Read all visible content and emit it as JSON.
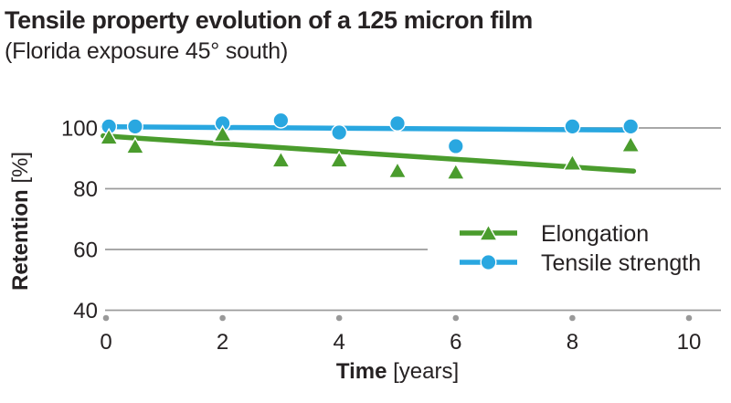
{
  "chart_data": {
    "type": "scatter",
    "title": "Tensile property evolution of a 125 micron film",
    "subtitle": "(Florida exposure 45° south)",
    "xlabel": {
      "bold": "Time",
      "unit": " [years]"
    },
    "ylabel": {
      "bold": "Retention",
      "unit": " [%]"
    },
    "x_ticks": [
      0,
      2,
      4,
      6,
      8,
      10
    ],
    "y_ticks": [
      100,
      80,
      60,
      40
    ],
    "xlim": [
      0,
      10
    ],
    "ylim": [
      40,
      105
    ],
    "grid": "horizontal-only",
    "legend_position": "right-middle",
    "series": [
      {
        "name": "Elongation",
        "marker": "triangle",
        "color": "#4a9c2d",
        "points": [
          [
            0.05,
            97
          ],
          [
            0.5,
            94
          ],
          [
            2,
            98
          ],
          [
            3,
            89.5
          ],
          [
            4,
            89.5
          ],
          [
            5,
            86
          ],
          [
            6,
            85.5
          ],
          [
            8,
            88.5
          ],
          [
            9,
            94.5
          ]
        ],
        "trend": {
          "x": [
            -0.05,
            9.05
          ],
          "y": [
            97.4,
            85.8
          ]
        }
      },
      {
        "name": "Tensile strength",
        "marker": "circle",
        "color": "#29a7e0",
        "points": [
          [
            0.05,
            100.5
          ],
          [
            0.5,
            100.5
          ],
          [
            2,
            101.5
          ],
          [
            3,
            102.5
          ],
          [
            4,
            98.5
          ],
          [
            5,
            101.5
          ],
          [
            6,
            94
          ],
          [
            8,
            100.5
          ],
          [
            9,
            100.5
          ]
        ],
        "trend": {
          "x": [
            -0.05,
            9.05
          ],
          "y": [
            100.4,
            99.3
          ]
        }
      }
    ],
    "style": {
      "grid_color": "#9c9c9c",
      "tick_dot_color": "#999999",
      "text_color": "#262223"
    }
  }
}
